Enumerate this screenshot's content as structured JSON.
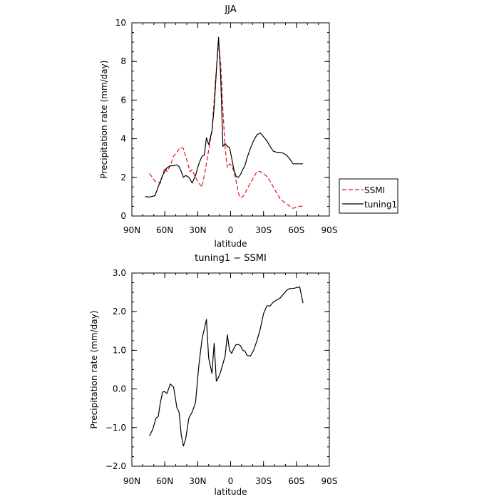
{
  "chart_data": [
    {
      "type": "line",
      "title": "JJA",
      "xlabel": "latitude",
      "ylabel": "Precipitation rate (mm/day)",
      "xlim": [
        90,
        -90
      ],
      "ylim": [
        0,
        10
      ],
      "xticks": [
        90,
        60,
        30,
        0,
        -30,
        -60,
        -90
      ],
      "xtick_labels": [
        "90N",
        "60N",
        "30N",
        "0",
        "30S",
        "60S",
        "90S"
      ],
      "yticks": [
        0,
        2,
        4,
        6,
        8,
        10
      ],
      "ytick_labels": [
        "0",
        "2",
        "4",
        "6",
        "8",
        "10"
      ],
      "grid": false,
      "legend": "right",
      "series": [
        {
          "name": "SSMI",
          "color": "#e8141b",
          "dash": "dashed",
          "x": [
            74,
            72,
            69,
            66,
            64,
            62,
            60,
            58,
            55,
            52,
            49,
            46,
            43,
            41,
            39,
            37,
            35,
            32,
            29,
            26,
            23,
            20,
            17,
            15,
            13,
            11,
            9,
            7,
            5,
            3,
            1,
            -1,
            -3,
            -5,
            -7,
            -9,
            -11,
            -13,
            -15,
            -18,
            -21,
            -24,
            -27,
            -30,
            -33,
            -36,
            -39,
            -42,
            -45,
            -48,
            -51,
            -54,
            -57,
            -60,
            -63,
            -66
          ],
          "values": [
            2.2,
            2.05,
            1.8,
            1.75,
            1.7,
            2.1,
            2.5,
            2.3,
            2.6,
            3.1,
            3.3,
            3.55,
            3.5,
            3.1,
            2.7,
            2.3,
            2.4,
            2.0,
            1.7,
            1.5,
            2.4,
            3.4,
            4.4,
            6.0,
            7.6,
            8.9,
            7.9,
            5.5,
            3.5,
            2.5,
            2.7,
            2.6,
            2.3,
            1.8,
            1.2,
            0.95,
            1.0,
            1.15,
            1.4,
            1.7,
            2.0,
            2.3,
            2.3,
            2.2,
            2.05,
            1.8,
            1.5,
            1.2,
            0.9,
            0.75,
            0.65,
            0.5,
            0.4,
            0.45,
            0.5,
            0.5
          ]
        },
        {
          "name": "tuning1",
          "color": "#000000",
          "dash": "solid",
          "x": [
            78,
            74,
            69,
            66,
            64,
            62,
            60,
            58,
            55,
            52,
            49,
            47,
            45,
            43,
            41,
            38,
            35,
            32,
            29,
            26,
            24,
            22,
            20,
            17,
            15,
            13,
            11,
            9,
            7,
            5,
            3,
            1,
            -1,
            -3,
            -5,
            -7,
            -9,
            -11,
            -13,
            -15,
            -18,
            -21,
            -24,
            -27,
            -30,
            -33,
            -36,
            -39,
            -42,
            -45,
            -48,
            -51,
            -54,
            -57,
            -60,
            -63,
            -66
          ],
          "values": [
            1.0,
            0.98,
            1.05,
            1.5,
            1.8,
            2.1,
            2.3,
            2.5,
            2.6,
            2.6,
            2.65,
            2.55,
            2.3,
            2.0,
            2.1,
            2.0,
            1.7,
            2.1,
            2.7,
            3.1,
            3.15,
            4.05,
            3.7,
            4.4,
            5.6,
            7.5,
            9.25,
            7.2,
            3.6,
            3.75,
            3.6,
            3.55,
            3.0,
            2.4,
            2.05,
            2.0,
            2.15,
            2.4,
            2.6,
            3.0,
            3.5,
            3.9,
            4.2,
            4.3,
            4.1,
            3.9,
            3.6,
            3.35,
            3.3,
            3.3,
            3.25,
            3.15,
            2.95,
            2.7,
            2.7,
            2.7,
            2.7
          ]
        }
      ]
    },
    {
      "type": "line",
      "title": "tuning1 − SSMI",
      "xlabel": "latitude",
      "ylabel": "Precipitation rate (mm/day)",
      "xlim": [
        90,
        -90
      ],
      "ylim": [
        -2,
        3
      ],
      "xticks": [
        90,
        60,
        30,
        0,
        -30,
        -60,
        -90
      ],
      "xtick_labels": [
        "90N",
        "60N",
        "30N",
        "0",
        "30S",
        "60S",
        "90S"
      ],
      "yticks": [
        -2,
        -1,
        0,
        1,
        2,
        3
      ],
      "ytick_labels": [
        "−2.0",
        "−1.0",
        "0.0",
        "1.0",
        "2.0",
        "3.0"
      ],
      "grid": false,
      "series": [
        {
          "name": "",
          "color": "#000000",
          "dash": "solid",
          "x": [
            74,
            71,
            68,
            66,
            64,
            62,
            60,
            58,
            55,
            52,
            49,
            47,
            45,
            43,
            41,
            38,
            35,
            32,
            29,
            26,
            24,
            22,
            20,
            17,
            15,
            13,
            11,
            9,
            7,
            5,
            3,
            1,
            -1,
            -3,
            -5,
            -7,
            -9,
            -11,
            -13,
            -15,
            -18,
            -21,
            -24,
            -27,
            -30,
            -33,
            -36,
            -39,
            -42,
            -45,
            -48,
            -51,
            -54,
            -57,
            -60,
            -63,
            -66
          ],
          "values": [
            -1.22,
            -1.05,
            -0.75,
            -0.72,
            -0.35,
            -0.08,
            -0.07,
            -0.12,
            0.13,
            0.05,
            -0.48,
            -0.6,
            -1.2,
            -1.48,
            -1.3,
            -0.75,
            -0.6,
            -0.35,
            0.6,
            1.3,
            1.55,
            1.8,
            0.8,
            0.4,
            1.18,
            0.2,
            0.3,
            0.45,
            0.65,
            0.85,
            1.4,
            1.0,
            0.92,
            1.05,
            1.15,
            1.15,
            1.12,
            1.0,
            0.98,
            0.87,
            0.85,
            1.0,
            1.25,
            1.55,
            1.95,
            2.15,
            2.15,
            2.25,
            2.3,
            2.35,
            2.45,
            2.55,
            2.6,
            2.6,
            2.62,
            2.64,
            2.22
          ]
        }
      ]
    }
  ]
}
